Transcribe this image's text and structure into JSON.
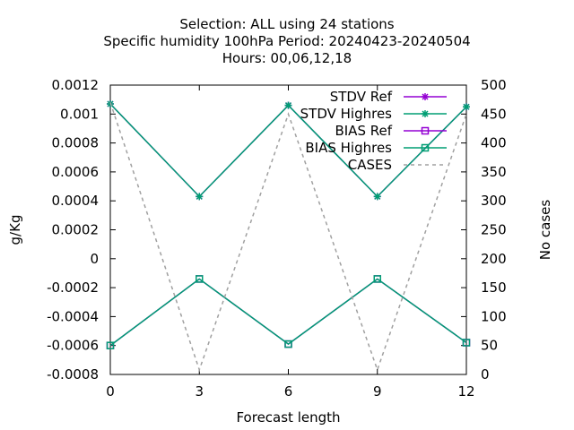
{
  "chart_data": {
    "type": "line",
    "title_lines": [
      "Selection: ALL using    24 stations",
      "Specific humidity 100hPa   Period: 20240423-20240504",
      "Hours:  00,06,12,18"
    ],
    "xlabel": "Forecast length",
    "ylabel": "g/Kg",
    "y2label": "No cases",
    "x": [
      0,
      3,
      6,
      9,
      12
    ],
    "xlim": [
      0,
      12
    ],
    "ylim": [
      -0.0008,
      0.0012
    ],
    "y2lim": [
      0,
      500
    ],
    "xticks": [
      "0",
      "3",
      "6",
      "9",
      "12"
    ],
    "yticks": [
      {
        "v": -0.0008,
        "label": "-0.0008"
      },
      {
        "v": -0.0006,
        "label": "-0.0006"
      },
      {
        "v": -0.0004,
        "label": "-0.0004"
      },
      {
        "v": -0.0002,
        "label": "-0.0002"
      },
      {
        "v": 0,
        "label": "0"
      },
      {
        "v": 0.0002,
        "label": "0.0002"
      },
      {
        "v": 0.0004,
        "label": "0.0004"
      },
      {
        "v": 0.0006,
        "label": "0.0006"
      },
      {
        "v": 0.0008,
        "label": "0.0008"
      },
      {
        "v": 0.001,
        "label": "0.001"
      },
      {
        "v": 0.0012,
        "label": "0.0012"
      }
    ],
    "y2ticks": [
      "0",
      "50",
      "100",
      "150",
      "200",
      "250",
      "300",
      "350",
      "400",
      "450",
      "500"
    ],
    "grid": false,
    "legend_position": "top-right",
    "series": [
      {
        "name": "STDV Ref",
        "color": "#9400d3",
        "marker": "star",
        "axis": "y1",
        "dash": false,
        "values": [
          0.00107,
          0.00043,
          0.00106,
          0.00043,
          0.00105
        ]
      },
      {
        "name": "STDV Highres",
        "color": "#009e73",
        "marker": "star",
        "axis": "y1",
        "dash": false,
        "values": [
          0.00107,
          0.00043,
          0.00106,
          0.00043,
          0.00105
        ]
      },
      {
        "name": "BIAS Ref",
        "color": "#9400d3",
        "marker": "square",
        "axis": "y1",
        "dash": false,
        "values": [
          -0.0006,
          -0.00014,
          -0.00059,
          -0.00014,
          -0.00058
        ]
      },
      {
        "name": "BIAS Highres",
        "color": "#009e73",
        "marker": "square",
        "axis": "y1",
        "dash": false,
        "values": [
          -0.0006,
          -0.00014,
          -0.00059,
          -0.00014,
          -0.00058
        ]
      },
      {
        "name": "CASES",
        "color": "#a0a0a0",
        "marker": "none",
        "axis": "y2",
        "dash": true,
        "values": [
          470,
          8,
          450,
          8,
          450
        ]
      }
    ]
  }
}
